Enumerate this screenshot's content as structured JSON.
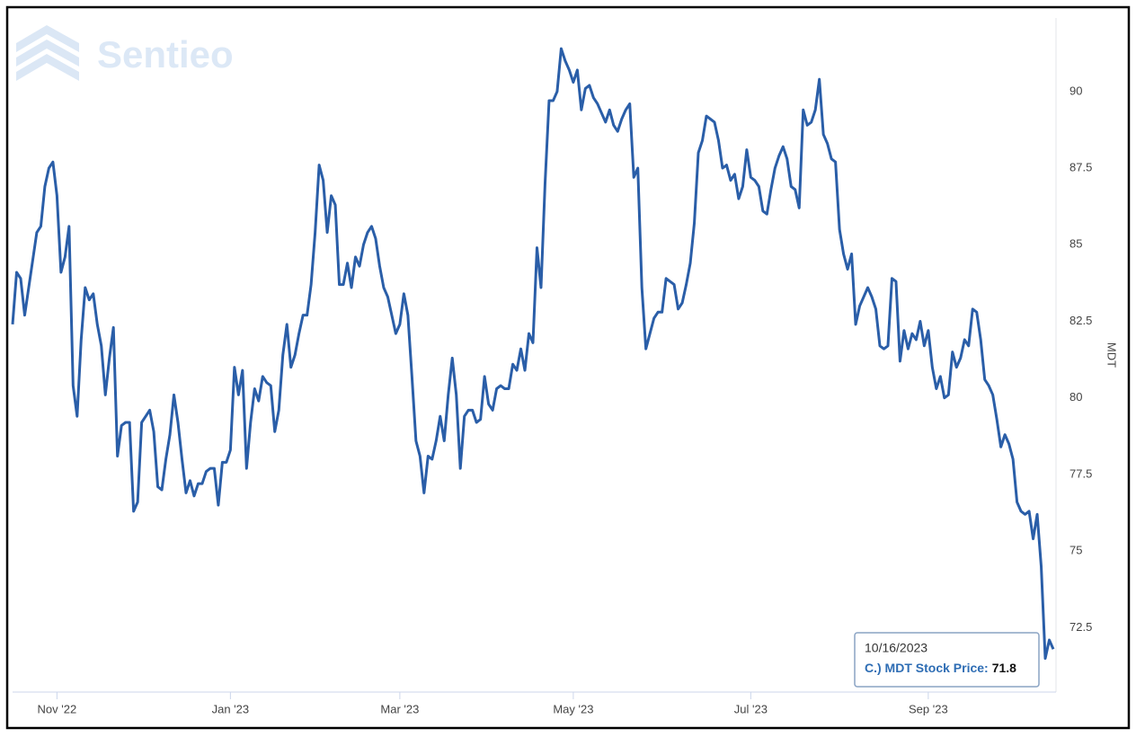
{
  "chart_data": {
    "type": "line",
    "watermark": "Sentieo",
    "y_label": "MDT",
    "color": "#2a5ea8",
    "grid": false,
    "ylim": [
      70.4,
      92.4
    ],
    "yticks": [
      72.5,
      75,
      77.5,
      80,
      82.5,
      85,
      87.5,
      90
    ],
    "tooltip": {
      "date": "10/16/2023",
      "label": "C.) MDT Stock Price:"
    },
    "categories": [
      null,
      null,
      null,
      null,
      null,
      null,
      null,
      null,
      null,
      null,
      null,
      "Nov '22",
      null,
      null,
      null,
      null,
      null,
      null,
      null,
      null,
      null,
      null,
      null,
      null,
      null,
      null,
      null,
      null,
      null,
      null,
      null,
      null,
      null,
      null,
      null,
      null,
      null,
      null,
      null,
      null,
      null,
      null,
      null,
      null,
      null,
      null,
      null,
      null,
      null,
      null,
      null,
      null,
      null,
      null,
      "Jan '23",
      null,
      null,
      null,
      null,
      null,
      null,
      null,
      null,
      null,
      null,
      null,
      null,
      null,
      null,
      null,
      null,
      null,
      null,
      null,
      null,
      null,
      null,
      null,
      null,
      null,
      null,
      null,
      null,
      null,
      null,
      null,
      null,
      null,
      null,
      null,
      null,
      null,
      null,
      null,
      null,
      null,
      "Mar '23",
      null,
      null,
      null,
      null,
      null,
      null,
      null,
      null,
      null,
      null,
      null,
      null,
      null,
      null,
      null,
      null,
      null,
      null,
      null,
      null,
      null,
      null,
      null,
      null,
      null,
      null,
      null,
      null,
      null,
      null,
      null,
      null,
      null,
      null,
      null,
      null,
      null,
      null,
      null,
      null,
      null,
      null,
      "May '23",
      null,
      null,
      null,
      null,
      null,
      null,
      null,
      null,
      null,
      null,
      null,
      null,
      null,
      null,
      null,
      null,
      null,
      null,
      null,
      null,
      null,
      null,
      null,
      null,
      null,
      null,
      null,
      null,
      null,
      null,
      null,
      null,
      null,
      null,
      null,
      null,
      null,
      null,
      null,
      null,
      null,
      null,
      null,
      "Jul '23",
      null,
      null,
      null,
      null,
      null,
      null,
      null,
      null,
      null,
      null,
      null,
      null,
      null,
      null,
      null,
      null,
      null,
      null,
      null,
      null,
      null,
      null,
      null,
      null,
      null,
      null,
      null,
      null,
      null,
      null,
      null,
      null,
      null,
      null,
      null,
      null,
      null,
      null,
      null,
      null,
      null,
      null,
      null,
      "Sep '23",
      null,
      null,
      null,
      null,
      null,
      null,
      null,
      null,
      null,
      null,
      null,
      null,
      null,
      null,
      null,
      null,
      null,
      null,
      null,
      null,
      null,
      null,
      null,
      null,
      null,
      null,
      null,
      null,
      null,
      null,
      null
    ],
    "values": [
      82.4,
      84.1,
      83.9,
      82.7,
      83.6,
      84.5,
      85.4,
      85.6,
      86.9,
      87.5,
      87.7,
      86.6,
      84.1,
      84.6,
      85.6,
      80.4,
      79.4,
      81.9,
      83.6,
      83.2,
      83.4,
      82.4,
      81.7,
      80.1,
      81.3,
      82.3,
      78.1,
      79.1,
      79.2,
      79.2,
      76.3,
      76.6,
      79.2,
      79.4,
      79.6,
      78.9,
      77.1,
      77.0,
      78.0,
      78.8,
      80.1,
      79.2,
      78.0,
      76.9,
      77.3,
      76.8,
      77.2,
      77.2,
      77.6,
      77.7,
      77.7,
      76.5,
      77.9,
      77.9,
      78.3,
      81.0,
      80.1,
      80.9,
      77.7,
      79.2,
      80.3,
      79.9,
      80.7,
      80.5,
      80.4,
      78.9,
      79.6,
      81.4,
      82.4,
      81.0,
      81.4,
      82.1,
      82.7,
      82.7,
      83.7,
      85.4,
      87.6,
      87.1,
      85.4,
      86.6,
      86.3,
      83.7,
      83.7,
      84.4,
      83.6,
      84.6,
      84.3,
      85.0,
      85.4,
      85.6,
      85.2,
      84.3,
      83.6,
      83.3,
      82.7,
      82.1,
      82.4,
      83.4,
      82.7,
      80.7,
      78.6,
      78.1,
      76.9,
      78.1,
      78.0,
      78.6,
      79.4,
      78.6,
      80.1,
      81.3,
      80.1,
      77.7,
      79.4,
      79.6,
      79.6,
      79.2,
      79.3,
      80.7,
      79.8,
      79.6,
      80.3,
      80.4,
      80.3,
      80.3,
      81.1,
      80.9,
      81.6,
      80.9,
      82.1,
      81.8,
      84.9,
      83.6,
      87.0,
      89.7,
      89.7,
      90.0,
      91.4,
      91.0,
      90.7,
      90.3,
      90.7,
      89.4,
      90.1,
      90.2,
      89.8,
      89.6,
      89.3,
      89.0,
      89.4,
      88.9,
      88.7,
      89.1,
      89.4,
      89.6,
      87.2,
      87.5,
      83.6,
      81.6,
      82.1,
      82.6,
      82.8,
      82.8,
      83.9,
      83.8,
      83.7,
      82.9,
      83.1,
      83.7,
      84.4,
      85.7,
      88.0,
      88.4,
      89.2,
      89.1,
      89.0,
      88.4,
      87.5,
      87.6,
      87.1,
      87.3,
      86.5,
      86.9,
      88.1,
      87.2,
      87.1,
      86.9,
      86.1,
      86.0,
      86.8,
      87.5,
      87.9,
      88.2,
      87.8,
      86.9,
      86.8,
      86.2,
      89.4,
      88.9,
      89.0,
      89.4,
      90.4,
      88.6,
      88.3,
      87.8,
      87.7,
      85.5,
      84.7,
      84.2,
      84.7,
      82.4,
      83.0,
      83.3,
      83.6,
      83.3,
      82.9,
      81.7,
      81.6,
      81.7,
      83.9,
      83.8,
      81.2,
      82.2,
      81.6,
      82.1,
      81.9,
      82.5,
      81.7,
      82.2,
      81.0,
      80.3,
      80.7,
      80.0,
      80.1,
      81.5,
      81.0,
      81.3,
      81.9,
      81.7,
      82.9,
      82.8,
      81.9,
      80.6,
      80.4,
      80.1,
      79.3,
      78.4,
      78.8,
      78.5,
      78.0,
      76.6,
      76.3,
      76.2,
      76.3,
      75.4,
      76.2,
      74.5,
      71.5,
      72.1,
      71.8
    ]
  }
}
